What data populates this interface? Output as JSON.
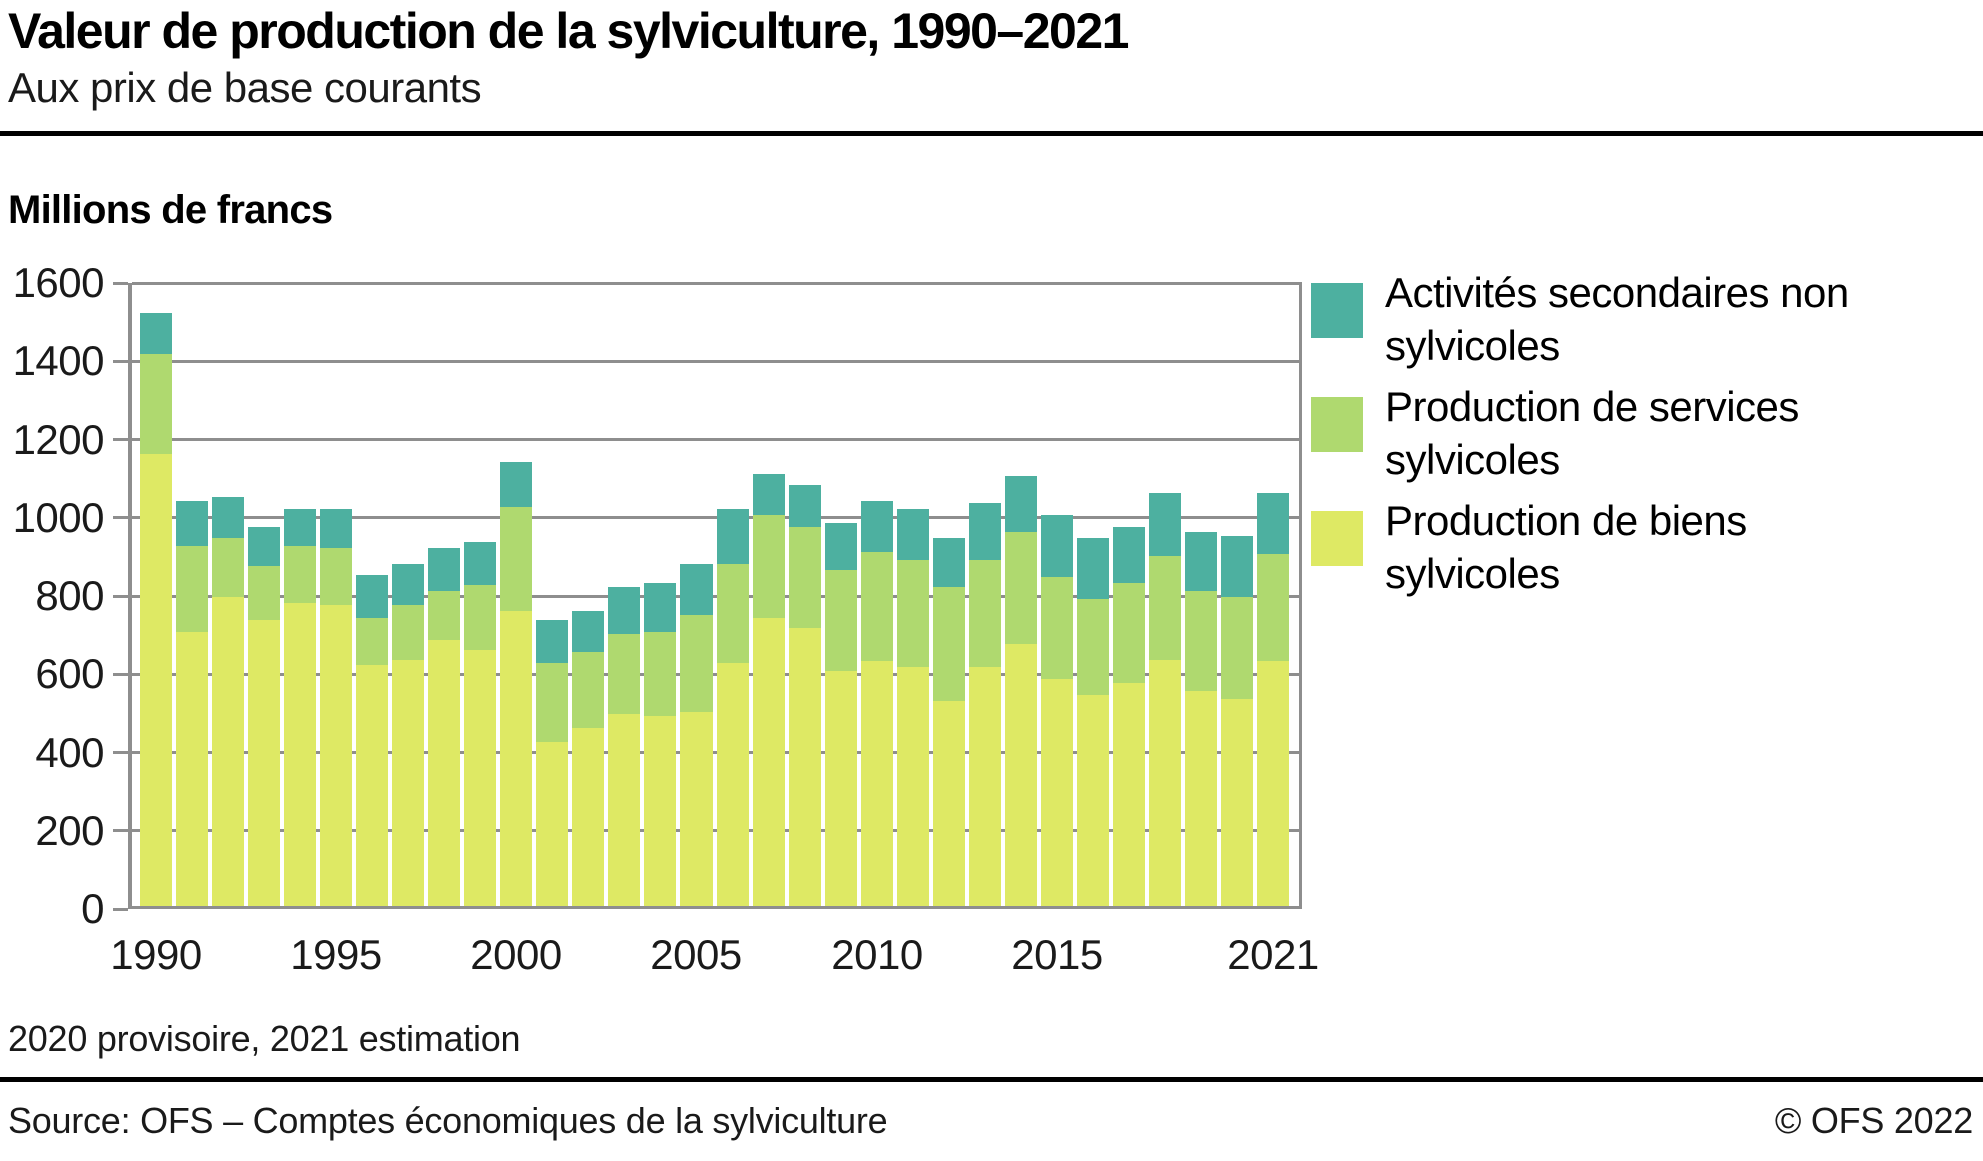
{
  "header": {
    "title": "Valeur de production de la sylviculture, 1990–2021",
    "subtitle": "Aux prix de base courants"
  },
  "chart": {
    "unit_label": "Millions de francs"
  },
  "chart_data": {
    "type": "bar",
    "stacked": true,
    "title": "Valeur de production de la sylviculture, 1990–2021",
    "subtitle": "Aux prix de base courants",
    "ylabel": "Millions de francs",
    "xlabel": "",
    "ylim": [
      0,
      1600
    ],
    "ytick_step": 200,
    "grid": true,
    "legend_position": "right",
    "x": [
      1990,
      1991,
      1992,
      1993,
      1994,
      1995,
      1996,
      1997,
      1998,
      1999,
      2000,
      2001,
      2002,
      2003,
      2004,
      2005,
      2006,
      2007,
      2008,
      2009,
      2010,
      2011,
      2012,
      2013,
      2014,
      2015,
      2016,
      2017,
      2018,
      2019,
      2020,
      2021
    ],
    "x_tick_labels": [
      "1990",
      "1995",
      "2000",
      "2005",
      "2010",
      "2015",
      "2021"
    ],
    "x_tick_years": [
      1990,
      1995,
      2000,
      2005,
      2010,
      2015,
      2021
    ],
    "y_tick_labels": [
      "0",
      "200",
      "400",
      "600",
      "800",
      "1000",
      "1200",
      "1400",
      "1600"
    ],
    "series": [
      {
        "name": "Production de biens sylvicoles",
        "key": "biens",
        "color": "#dee964",
        "values": [
          1155,
          700,
          790,
          730,
          775,
          770,
          615,
          630,
          680,
          655,
          755,
          420,
          455,
          490,
          485,
          495,
          620,
          735,
          710,
          600,
          625,
          610,
          525,
          610,
          670,
          580,
          540,
          570,
          630,
          550,
          530,
          625
        ]
      },
      {
        "name": "Production de services sylvicoles",
        "key": "services",
        "color": "#afd96f",
        "values": [
          255,
          220,
          150,
          140,
          145,
          145,
          120,
          140,
          125,
          165,
          265,
          200,
          195,
          205,
          215,
          250,
          255,
          265,
          260,
          260,
          280,
          275,
          290,
          275,
          285,
          260,
          245,
          255,
          265,
          255,
          260,
          275
        ]
      },
      {
        "name": "Activités secondaires non sylvicoles",
        "key": "secondaires",
        "color": "#4db0a0",
        "values": [
          105,
          115,
          105,
          100,
          95,
          100,
          110,
          105,
          110,
          110,
          115,
          110,
          105,
          120,
          125,
          130,
          140,
          105,
          105,
          120,
          130,
          130,
          125,
          145,
          145,
          160,
          155,
          145,
          160,
          150,
          155,
          155
        ]
      }
    ],
    "legend": [
      {
        "label": "Activités secondaires non sylvicoles",
        "lines": "Activités secondaires non\nsylvicoles",
        "color": "#4db0a0",
        "key": "secondaires"
      },
      {
        "label": "Production de services sylvicoles",
        "lines": "Production de services\nsylvicoles",
        "color": "#afd96f",
        "key": "services"
      },
      {
        "label": "Production de biens sylvicoles",
        "lines": "Production de biens\nsylvicoles",
        "color": "#dee964",
        "key": "biens"
      }
    ],
    "colors": {
      "grid": "#8e8e8e",
      "axis": "#8e8e8e",
      "rule": "#000000"
    }
  },
  "footnote": "2020 provisoire, 2021 estimation",
  "footer": {
    "source": "Source: OFS – Comptes économiques de la sylviculture",
    "copyright": "© OFS 2022"
  }
}
